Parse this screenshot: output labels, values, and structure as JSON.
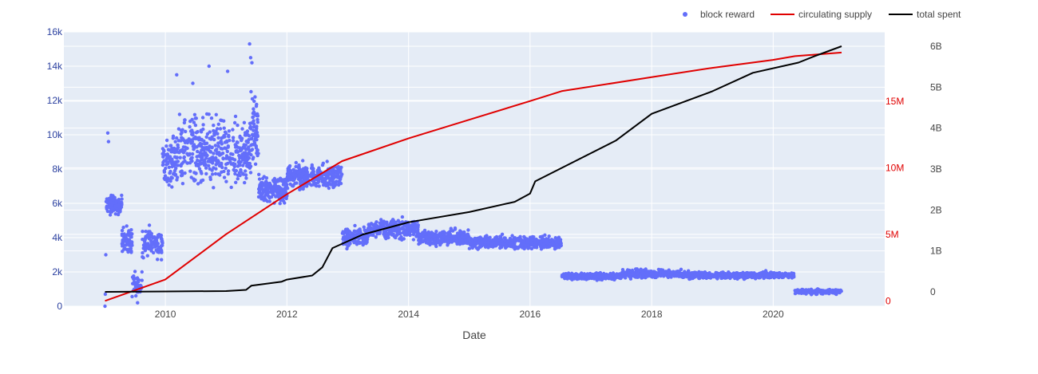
{
  "chart_data": {
    "type": "scatter",
    "xlabel": "Date",
    "legend_position": "top-right",
    "grid": true,
    "background": "#E5ECF6",
    "x_axis": {
      "type": "date",
      "range": [
        "2008-05-01",
        "2021-11-01"
      ],
      "ticks": [
        "2010",
        "2012",
        "2014",
        "2016",
        "2018",
        "2020"
      ]
    },
    "y_axes": {
      "left": {
        "range": [
          0,
          16000
        ],
        "ticks": [
          "0",
          "2k",
          "4k",
          "6k",
          "8k",
          "10k",
          "12k",
          "14k",
          "16k"
        ],
        "color": "#2a3f9f"
      },
      "right_red": {
        "range": [
          -0.4,
          20.2
        ],
        "unit": "M",
        "ticks": [
          "0",
          "5M",
          "10M",
          "15M"
        ],
        "color": "#e00000"
      },
      "right_black": {
        "range": [
          -0.35,
          6.35
        ],
        "unit": "B",
        "ticks": [
          "0",
          "1B",
          "2B",
          "3B",
          "4B",
          "5B",
          "6B"
        ],
        "color": "#444444"
      }
    },
    "series": [
      {
        "name": "block reward",
        "kind": "markers",
        "axis": "left",
        "color": "#636EFA",
        "segments": [
          {
            "from": "2009-01-10",
            "to": "2009-04-15",
            "center": 5900,
            "spread": 450,
            "n": 110
          },
          {
            "from": "2009-04-15",
            "to": "2009-06-15",
            "center": 3900,
            "spread": 600,
            "n": 70
          },
          {
            "from": "2009-06-15",
            "to": "2009-08-15",
            "center": 1200,
            "spread": 700,
            "n": 40
          },
          {
            "from": "2009-08-15",
            "to": "2009-12-15",
            "center": 3700,
            "spread": 700,
            "n": 110
          },
          {
            "from": "2009-12-15",
            "to": "2010-03-15",
            "center": 8500,
            "spread": 1300,
            "n": 90
          },
          {
            "from": "2010-03-15",
            "to": "2011-05-30",
            "center": 9000,
            "spread": 1600,
            "n": 420
          },
          {
            "from": "2011-05-30",
            "to": "2011-07-15",
            "center": 10500,
            "spread": 2000,
            "n": 60
          },
          {
            "from": "2011-07-15",
            "to": "2012-01-01",
            "center": 6800,
            "spread": 700,
            "n": 200
          },
          {
            "from": "2012-01-01",
            "to": "2012-11-28",
            "center": 7600,
            "spread": 550,
            "n": 330
          },
          {
            "from": "2012-11-28",
            "to": "2013-05-01",
            "center": 4000,
            "spread": 450,
            "n": 150
          },
          {
            "from": "2013-05-01",
            "to": "2014-03-01",
            "center": 4500,
            "spread": 450,
            "n": 300
          },
          {
            "from": "2014-03-01",
            "to": "2015-01-01",
            "center": 4000,
            "spread": 350,
            "n": 300
          },
          {
            "from": "2015-01-01",
            "to": "2016-07-09",
            "center": 3700,
            "spread": 300,
            "n": 520
          },
          {
            "from": "2016-07-09",
            "to": "2017-07-01",
            "center": 1750,
            "spread": 160,
            "n": 330
          },
          {
            "from": "2017-07-01",
            "to": "2018-07-01",
            "center": 1900,
            "spread": 200,
            "n": 330
          },
          {
            "from": "2018-07-01",
            "to": "2020-05-11",
            "center": 1800,
            "spread": 160,
            "n": 560
          },
          {
            "from": "2020-05-11",
            "to": "2021-02-15",
            "center": 850,
            "spread": 120,
            "n": 240
          }
        ],
        "outliers": [
          {
            "x": "2009-01-03",
            "y": 0
          },
          {
            "x": "2009-01-05",
            "y": 700
          },
          {
            "x": "2009-01-08",
            "y": 3000
          },
          {
            "x": "2009-01-20",
            "y": 10100
          },
          {
            "x": "2009-01-24",
            "y": 9600
          },
          {
            "x": "2009-07-18",
            "y": 200
          },
          {
            "x": "2010-03-10",
            "y": 13500
          },
          {
            "x": "2010-06-15",
            "y": 13000
          },
          {
            "x": "2010-09-20",
            "y": 14000
          },
          {
            "x": "2011-01-10",
            "y": 13700
          },
          {
            "x": "2011-05-22",
            "y": 15300
          },
          {
            "x": "2011-05-28",
            "y": 14500
          },
          {
            "x": "2011-06-05",
            "y": 14200
          }
        ]
      },
      {
        "name": "circulating supply",
        "kind": "line",
        "axis": "right_red",
        "unit": "M",
        "color": "#e00000",
        "points": [
          [
            "2009-01-03",
            0.0
          ],
          [
            "2009-12-31",
            1.6
          ],
          [
            "2010-12-31",
            5.0
          ],
          [
            "2011-12-31",
            8.0
          ],
          [
            "2012-11-28",
            10.5
          ],
          [
            "2013-12-31",
            12.2
          ],
          [
            "2014-12-31",
            13.6
          ],
          [
            "2015-12-31",
            15.0
          ],
          [
            "2016-07-09",
            15.75
          ],
          [
            "2017-12-31",
            16.8
          ],
          [
            "2018-12-31",
            17.5
          ],
          [
            "2019-12-31",
            18.1
          ],
          [
            "2020-05-11",
            18.38
          ],
          [
            "2021-02-15",
            18.65
          ]
        ]
      },
      {
        "name": "total spent",
        "kind": "line",
        "axis": "right_black",
        "unit": "B",
        "color": "#000000",
        "points": [
          [
            "2009-01-03",
            0.0
          ],
          [
            "2010-01-01",
            0.01
          ],
          [
            "2011-01-01",
            0.02
          ],
          [
            "2011-05-01",
            0.05
          ],
          [
            "2011-06-01",
            0.15
          ],
          [
            "2011-12-01",
            0.25
          ],
          [
            "2012-01-01",
            0.3
          ],
          [
            "2012-06-01",
            0.4
          ],
          [
            "2012-08-01",
            0.6
          ],
          [
            "2012-10-01",
            1.07
          ],
          [
            "2013-04-01",
            1.4
          ],
          [
            "2014-01-01",
            1.7
          ],
          [
            "2015-01-01",
            1.95
          ],
          [
            "2015-10-01",
            2.2
          ],
          [
            "2016-01-01",
            2.4
          ],
          [
            "2016-02-01",
            2.7
          ],
          [
            "2016-06-01",
            2.95
          ],
          [
            "2017-06-01",
            3.7
          ],
          [
            "2018-01-01",
            4.35
          ],
          [
            "2019-01-01",
            4.9
          ],
          [
            "2019-09-01",
            5.35
          ],
          [
            "2020-06-01",
            5.6
          ],
          [
            "2020-09-01",
            5.75
          ],
          [
            "2021-02-15",
            6.0
          ]
        ]
      }
    ]
  }
}
